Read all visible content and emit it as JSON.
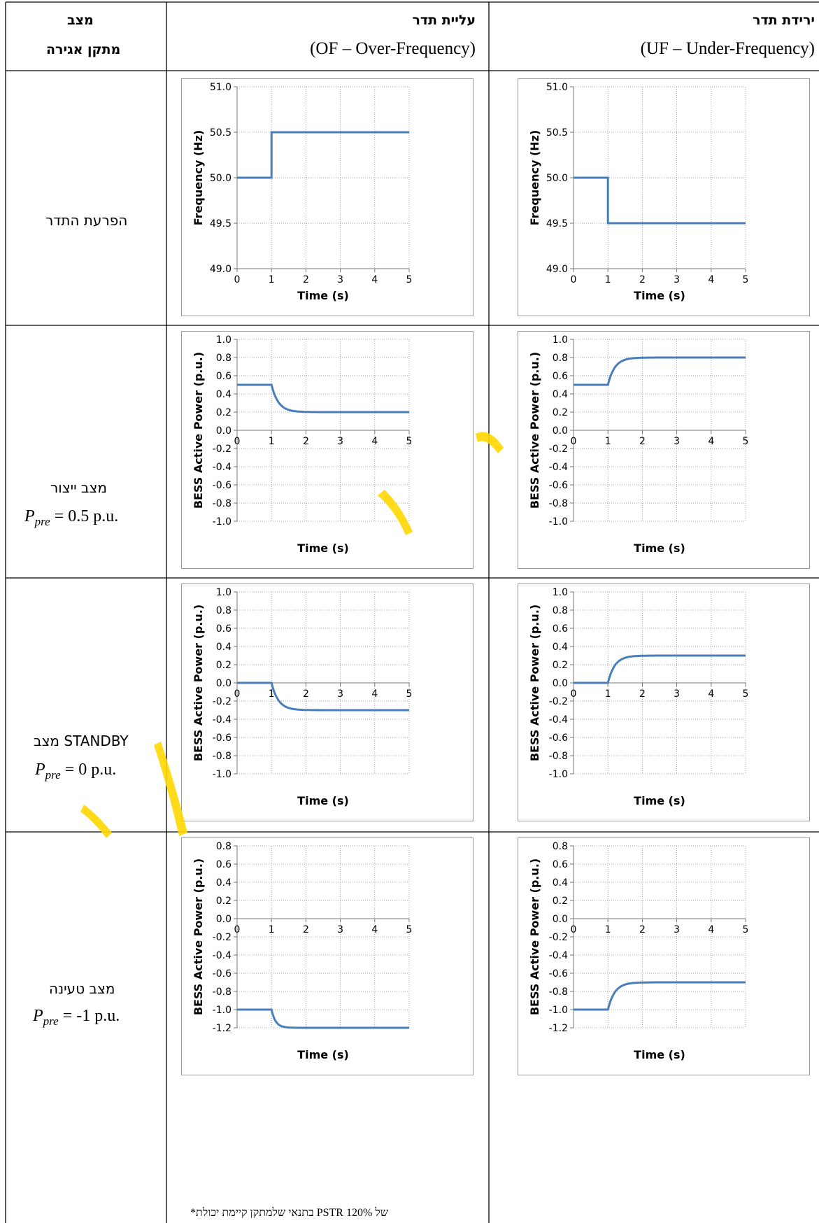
{
  "header": {
    "state_col_line1": "מצב",
    "state_col_line2": "מתקן אגירה",
    "of_col_line1": "עליית תדר",
    "of_col_line2": "(OF – Over-Frequency)",
    "uf_col_line1": "ירידת תדר",
    "uf_col_line2": "(UF – Under-Frequency)"
  },
  "rows": [
    {
      "label": "הפרעת התדר",
      "ppre_value": ""
    },
    {
      "label": "מצב ייצור",
      "ppre_value": "= 0.5 p.u."
    },
    {
      "label": "מצב STANDBY",
      "ppre_value": "= 0 p.u."
    },
    {
      "label": "מצב טעינה",
      "ppre_value": "= -1 p.u."
    }
  ],
  "ppre_symbol": "P",
  "ppre_subscript": "pre",
  "footnote": "*בתנאי שלמתקן קיימת יכולת PSTR של 120%",
  "colors": {
    "line": "#4a7ebb",
    "border": "#000000",
    "watermark": "#ffd700"
  },
  "chart_data": [
    {
      "id": "of-frequency",
      "type": "line",
      "xlabel": "Time (s)",
      "ylabel": "Frequency (Hz)",
      "xlim": [
        0,
        5
      ],
      "ylim": [
        49,
        51
      ],
      "xticks": [
        "0",
        "1",
        "2",
        "3",
        "4",
        "5"
      ],
      "yticks": [
        "51.0",
        "50.5",
        "50.0",
        "49.5",
        "49.0"
      ],
      "series": [
        {
          "step": {
            "t": 1,
            "from": 50.0,
            "to": 50.5,
            "tau": 0
          }
        }
      ]
    },
    {
      "id": "uf-frequency",
      "type": "line",
      "xlabel": "Time (s)",
      "ylabel": "Frequency (Hz)",
      "xlim": [
        0,
        5
      ],
      "ylim": [
        49,
        51
      ],
      "xticks": [
        "0",
        "1",
        "2",
        "3",
        "4",
        "5"
      ],
      "yticks": [
        "51.0",
        "50.5",
        "50.0",
        "49.5",
        "49.0"
      ],
      "series": [
        {
          "step": {
            "t": 1,
            "from": 50.0,
            "to": 49.5,
            "tau": 0
          }
        }
      ]
    },
    {
      "id": "of-gen",
      "type": "line",
      "xlabel": "Time (s)",
      "ylabel": "BESS Active Power (p.u.)",
      "xlim": [
        0,
        5
      ],
      "ylim": [
        -1,
        1
      ],
      "xticks": [
        "0",
        "1",
        "2",
        "3",
        "4",
        "5"
      ],
      "yticks": [
        "1.0",
        "0.8",
        "0.6",
        "0.4",
        "0.2",
        "0.0",
        "-0.2",
        "-0.4",
        "-0.6",
        "-0.8",
        "-1.0"
      ],
      "series": [
        {
          "step": {
            "t": 1,
            "from": 0.5,
            "to": 0.2,
            "tau": 0.2
          }
        }
      ]
    },
    {
      "id": "uf-gen",
      "type": "line",
      "xlabel": "Time (s)",
      "ylabel": "BESS Active Power (p.u.)",
      "xlim": [
        0,
        5
      ],
      "ylim": [
        -1,
        1
      ],
      "xticks": [
        "0",
        "1",
        "2",
        "3",
        "4",
        "5"
      ],
      "yticks": [
        "1.0",
        "0.8",
        "0.6",
        "0.4",
        "0.2",
        "0.0",
        "-0.2",
        "-0.4",
        "-0.6",
        "-0.8",
        "-1.0"
      ],
      "series": [
        {
          "step": {
            "t": 1,
            "from": 0.5,
            "to": 0.8,
            "tau": 0.2
          }
        }
      ]
    },
    {
      "id": "of-standby",
      "type": "line",
      "xlabel": "Time (s)",
      "ylabel": "BESS Active Power (p.u.)",
      "xlim": [
        0,
        5
      ],
      "ylim": [
        -1,
        1
      ],
      "xticks": [
        "0",
        "1",
        "2",
        "3",
        "4",
        "5"
      ],
      "yticks": [
        "1.0",
        "0.8",
        "0.6",
        "0.4",
        "0.2",
        "0.0",
        "-0.2",
        "-0.4",
        "-0.6",
        "-0.8",
        "-1.0"
      ],
      "series": [
        {
          "step": {
            "t": 1,
            "from": 0.0,
            "to": -0.3,
            "tau": 0.2
          }
        }
      ]
    },
    {
      "id": "uf-standby",
      "type": "line",
      "xlabel": "Time (s)",
      "ylabel": "BESS Active Power (p.u.)",
      "xlim": [
        0,
        5
      ],
      "ylim": [
        -1,
        1
      ],
      "xticks": [
        "0",
        "1",
        "2",
        "3",
        "4",
        "5"
      ],
      "yticks": [
        "1.0",
        "0.8",
        "0.6",
        "0.4",
        "0.2",
        "0.0",
        "-0.2",
        "-0.4",
        "-0.6",
        "-0.8",
        "-1.0"
      ],
      "series": [
        {
          "step": {
            "t": 1,
            "from": 0.0,
            "to": 0.3,
            "tau": 0.2
          }
        }
      ]
    },
    {
      "id": "of-charge",
      "type": "line",
      "xlabel": "Time (s)",
      "ylabel": "BESS Active Power (p.u.)",
      "xlim": [
        0,
        5
      ],
      "ylim": [
        -1.2,
        0.8
      ],
      "xticks": [
        "0",
        "1",
        "2",
        "3",
        "4",
        "5"
      ],
      "yticks": [
        "0.8",
        "0.6",
        "0.4",
        "0.2",
        "0.0",
        "-0.2",
        "-0.4",
        "-0.6",
        "-0.8",
        "-1.0",
        "-1.2"
      ],
      "series": [
        {
          "step": {
            "t": 1,
            "from": -1.0,
            "to": -1.2,
            "tau": 0.12
          }
        }
      ]
    },
    {
      "id": "uf-charge",
      "type": "line",
      "xlabel": "Time (s)",
      "ylabel": "BESS Active Power (p.u.)",
      "xlim": [
        0,
        5
      ],
      "ylim": [
        -1.2,
        0.8
      ],
      "xticks": [
        "0",
        "1",
        "2",
        "3",
        "4",
        "5"
      ],
      "yticks": [
        "0.8",
        "0.6",
        "0.4",
        "0.2",
        "0.0",
        "-0.2",
        "-0.4",
        "-0.6",
        "-0.8",
        "-1.0",
        "-1.2"
      ],
      "series": [
        {
          "step": {
            "t": 1,
            "from": -1.0,
            "to": -0.7,
            "tau": 0.2
          }
        }
      ]
    }
  ]
}
